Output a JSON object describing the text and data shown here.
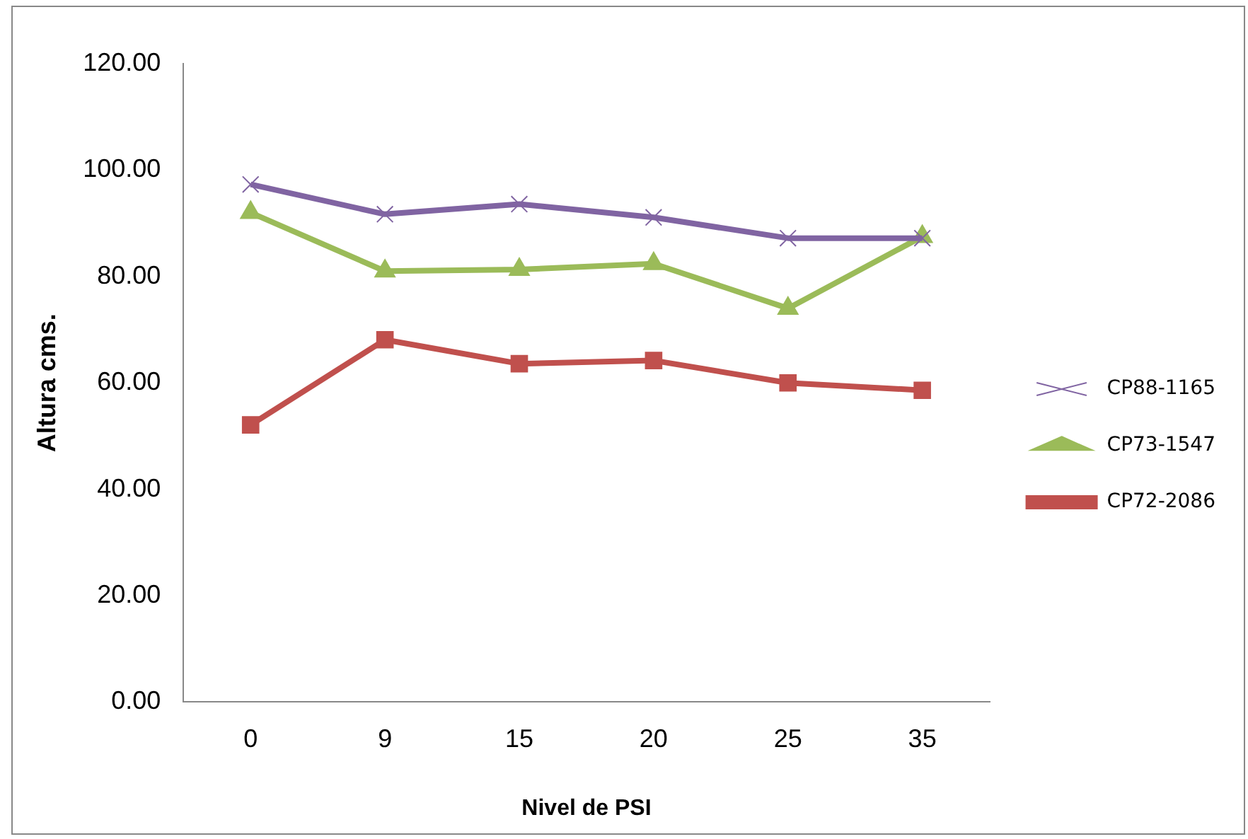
{
  "chart_data": {
    "type": "line",
    "xlabel": "Nivel de PSI",
    "ylabel": "Altura cms.",
    "categories": [
      "0",
      "9",
      "15",
      "20",
      "25",
      "35"
    ],
    "series": [
      {
        "name": "CP72-2086",
        "color": "#c0504d",
        "marker": "square",
        "values": [
          52.1,
          68.1,
          63.6,
          64.2,
          60.0,
          58.6
        ]
      },
      {
        "name": "CP73-1547",
        "color": "#9bbb59",
        "marker": "triangle",
        "values": [
          92.0,
          81.0,
          81.3,
          82.4,
          74.0,
          87.5
        ]
      },
      {
        "name": "CP88-1165",
        "color": "#8064a2",
        "marker": "cross",
        "values": [
          97.3,
          91.7,
          93.6,
          91.1,
          87.2,
          87.2
        ]
      }
    ],
    "ylim": [
      0,
      120
    ],
    "yticks": [
      {
        "value": 0,
        "label": "0.00"
      },
      {
        "value": 20,
        "label": "20.00"
      },
      {
        "value": 40,
        "label": "40.00"
      },
      {
        "value": 60,
        "label": "60.00"
      },
      {
        "value": 80,
        "label": "80.00"
      },
      {
        "value": 100,
        "label": "100.00"
      },
      {
        "value": 120,
        "label": "120.00"
      }
    ],
    "grid": false,
    "legend": "right",
    "line_style": "solid"
  }
}
